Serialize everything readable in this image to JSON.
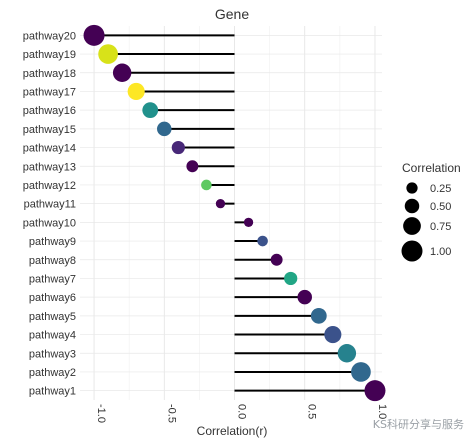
{
  "chart_data": {
    "type": "scatter",
    "subtype": "lollipop",
    "title": "Gene",
    "xlabel": "Correlation(r)",
    "ylabel": "",
    "xlim": [
      -1.1,
      1.05
    ],
    "x_ticks": [
      -1.0,
      -0.5,
      0.0,
      0.5,
      1.0
    ],
    "x_tick_labels": [
      "-1.0",
      "-0.5",
      "0.0",
      "0.5",
      "1.0"
    ],
    "x_tick_rotation": "vertical",
    "grid": true,
    "legend_position": "right",
    "categories": [
      "pathway1",
      "pathway2",
      "pathway3",
      "pathway4",
      "pathway5",
      "pathway6",
      "pathway7",
      "pathway8",
      "pathway9",
      "pathway10",
      "pathway11",
      "pathway12",
      "pathway13",
      "pathway14",
      "pathway15",
      "pathway16",
      "pathway17",
      "pathway18",
      "pathway19",
      "pathway20"
    ],
    "values": [
      1.0,
      0.9,
      0.8,
      0.7,
      0.6,
      0.5,
      0.4,
      0.3,
      0.2,
      0.1,
      -0.1,
      -0.2,
      -0.3,
      -0.4,
      -0.5,
      -0.6,
      -0.7,
      -0.8,
      -0.9,
      -1.0
    ],
    "point_colors": [
      "#440154",
      "#31688e",
      "#26828e",
      "#3b528b",
      "#31688e",
      "#440154",
      "#21a685",
      "#440154",
      "#3b528b",
      "#440154",
      "#440154",
      "#5ec962",
      "#440154",
      "#482878",
      "#31688e",
      "#21918c",
      "#fde725",
      "#440154",
      "#d8e219",
      "#440154"
    ],
    "legend": {
      "title": "Correlation",
      "labels": [
        "0.25",
        "0.50",
        "0.75",
        "1.00"
      ],
      "values": [
        0.25,
        0.5,
        0.75,
        1.0
      ]
    }
  },
  "watermark": "KS科研分享与服务"
}
